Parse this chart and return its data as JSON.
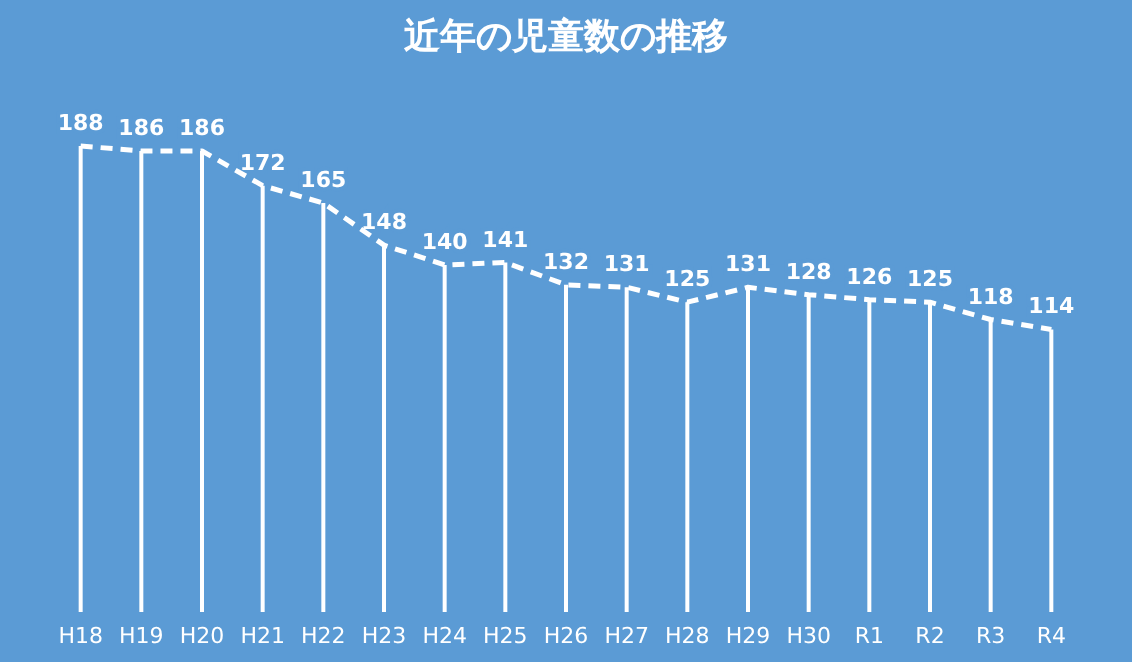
{
  "chart_data": {
    "type": "bar",
    "title": "近年の児童数の推移",
    "categories": [
      "H18",
      "H19",
      "H20",
      "H21",
      "H22",
      "H23",
      "H24",
      "H25",
      "H26",
      "H27",
      "H28",
      "H29",
      "H30",
      "R1",
      "R2",
      "R3",
      "R4"
    ],
    "series": [
      {
        "color": "#ffffff",
        "values": [
          188,
          186,
          186,
          172,
          165,
          148,
          140,
          141,
          132,
          131,
          125,
          131,
          128,
          126,
          125,
          118,
          114
        ],
        "value_labels": [
          "188",
          "186",
          "186",
          "172",
          "165",
          "148",
          "140",
          "141",
          "132",
          "131",
          "125",
          "131",
          "128",
          "126",
          "125",
          "118",
          "114"
        ]
      },
      {
        "type": "line",
        "color": "#ffffff",
        "line_style": "dashed",
        "values": [
          188,
          186,
          186,
          172,
          165,
          148,
          140,
          141,
          132,
          131,
          125,
          131,
          128,
          126,
          125,
          118,
          114
        ]
      }
    ],
    "tick_labels": "x"
  }
}
